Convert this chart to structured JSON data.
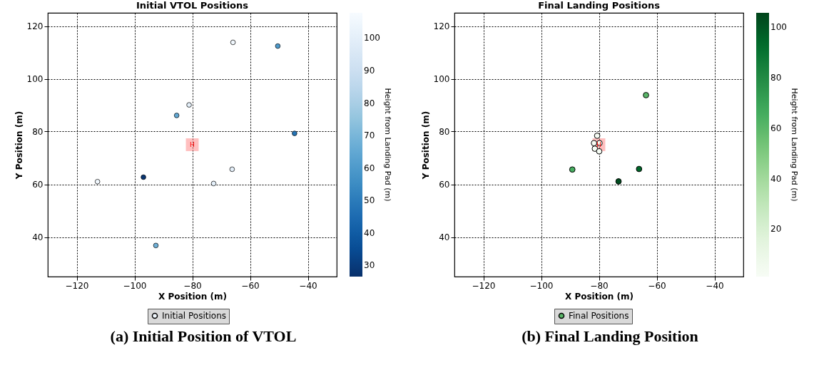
{
  "chart_data": [
    {
      "type": "scatter",
      "title": "Initial VTOL Positions",
      "xlabel": "X Position (m)",
      "ylabel": "Y Position (m)",
      "clabel": "Height from Landing Pad (m)",
      "xlim": [
        -130,
        -30
      ],
      "ylim": [
        25,
        125
      ],
      "xticks": [
        -120,
        -100,
        -80,
        -60,
        -40
      ],
      "yticks": [
        40,
        60,
        80,
        100,
        120
      ],
      "clim": [
        26.5,
        107.8
      ],
      "cticks": [
        30,
        40,
        50,
        60,
        70,
        80,
        90,
        100
      ],
      "grid": true,
      "legend": "bottom",
      "marker": "circle",
      "series": [
        {
          "name": "Initial Positions",
          "x": [
            -65.9,
            -50.4,
            -81.1,
            -85.4,
            -44.6,
            -66.2,
            -96.9,
            -112.8,
            -72.6,
            -92.6
          ],
          "values": [
            113.8,
            112.4,
            90.1,
            86.1,
            79.3,
            65.7,
            62.7,
            61.0,
            60.3,
            36.8
          ],
          "cvalues": [
            105,
            60,
            100,
            65,
            48,
            100,
            28,
            105,
            100,
            68
          ]
        }
      ],
      "annotations": [
        {
          "text": "H",
          "x": -80,
          "y": 75
        },
        "(a) Initial Position of VTOL"
      ]
    },
    {
      "type": "scatter",
      "title": "Final Landing Positions",
      "xlabel": "X Position (m)",
      "ylabel": "Y Position (m)",
      "clabel": "Height from Landing Pad (m)",
      "xlim": [
        -130,
        -30
      ],
      "ylim": [
        25,
        125
      ],
      "xticks": [
        -120,
        -100,
        -80,
        -60,
        -40
      ],
      "yticks": [
        40,
        60,
        80,
        100,
        120
      ],
      "clim": [
        1.1,
        105.8
      ],
      "cticks": [
        20,
        40,
        60,
        80,
        100
      ],
      "grid": true,
      "legend": "bottom",
      "marker": "circle",
      "series": [
        {
          "name": "Final Positions",
          "x": [
            -63.7,
            -80.6,
            -81.7,
            -79.8,
            -81.4,
            -79.9,
            -89.2,
            -66.1,
            -73.2
          ],
          "values": [
            93.8,
            78.4,
            75.6,
            75.6,
            73.5,
            72.5,
            65.6,
            65.8,
            61.1
          ],
          "cvalues": [
            60,
            2,
            2,
            2,
            2,
            2,
            65,
            95,
            103
          ]
        }
      ],
      "annotations": [
        {
          "text": "H",
          "x": -80,
          "y": 75
        },
        "(b) Final Landing Position"
      ]
    }
  ]
}
